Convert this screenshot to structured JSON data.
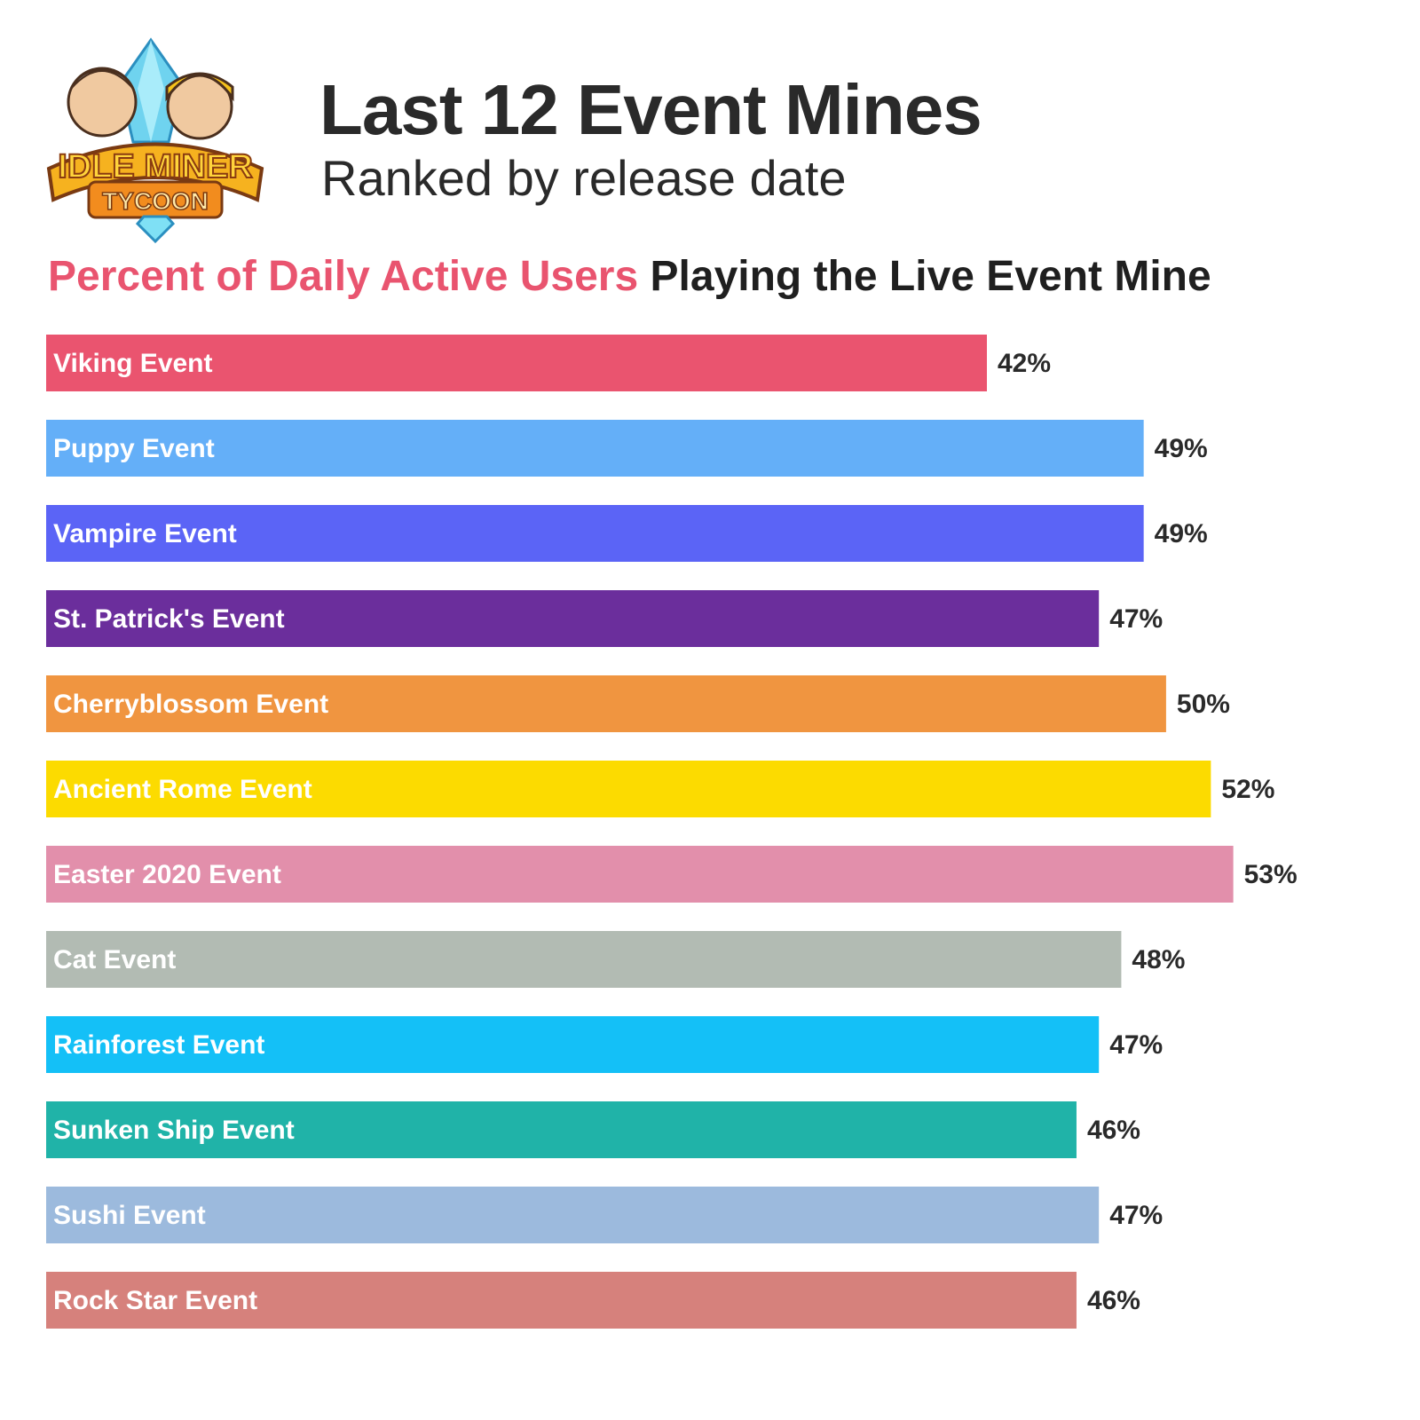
{
  "header": {
    "logo_text_line1": "IDLE MINER",
    "logo_text_line2": "TYCOON",
    "title": "Last 12 Event Mines",
    "subtitle": "Ranked by release date",
    "heading_accent": "Percent of Daily Active Users",
    "heading_rest": "Playing the Live Event Mine"
  },
  "chart_data": {
    "type": "bar",
    "orientation": "horizontal",
    "title": "Last 12 Event Mines",
    "subtitle": "Ranked by release date",
    "xlabel": "",
    "ylabel": "",
    "xlim": [
      0,
      62
    ],
    "grid": false,
    "categories": [
      "Viking Event",
      "Puppy Event",
      "Vampire Event",
      "St. Patrick's Event",
      "Cherryblossom Event",
      "Ancient Rome Event",
      "Easter 2020 Event",
      "Cat Event",
      "Rainforest Event",
      "Sunken Ship Event",
      "Sushi Event",
      "Rock Star Event"
    ],
    "values": [
      42,
      49,
      49,
      47,
      50,
      52,
      53,
      48,
      47,
      46,
      47,
      46
    ],
    "value_labels": [
      "42%",
      "49%",
      "49%",
      "47%",
      "50%",
      "52%",
      "53%",
      "48%",
      "47%",
      "46%",
      "47%",
      "46%"
    ],
    "colors": [
      "#ea546f",
      "#64aff8",
      "#5b64f6",
      "#6b2e9c",
      "#f09540",
      "#fcdb00",
      "#e28fab",
      "#b2bbb3",
      "#14c0f7",
      "#20b3a8",
      "#9cbadd",
      "#d6817c"
    ]
  }
}
